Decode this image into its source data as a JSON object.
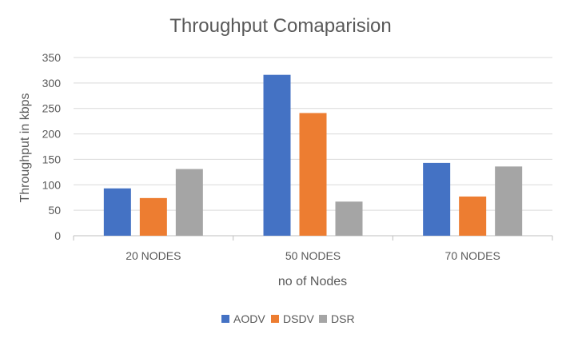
{
  "chart_data": {
    "type": "bar",
    "title": "Throughput Comaparision",
    "xlabel": "no of Nodes",
    "ylabel": "Throughput in kbps",
    "categories": [
      "20 NODES",
      "50 NODES",
      "70 NODES"
    ],
    "series": [
      {
        "name": "AODV",
        "color": "#4472C4",
        "values": [
          93,
          316,
          143
        ]
      },
      {
        "name": "DSDV",
        "color": "#ED7D31",
        "values": [
          74,
          241,
          77
        ]
      },
      {
        "name": "DSR",
        "color": "#A5A5A5",
        "values": [
          131,
          67,
          136
        ]
      }
    ],
    "ylim": [
      0,
      350
    ],
    "yticks": [
      0,
      50,
      100,
      150,
      200,
      250,
      300,
      350
    ],
    "grid": true,
    "legend_position": "bottom"
  }
}
